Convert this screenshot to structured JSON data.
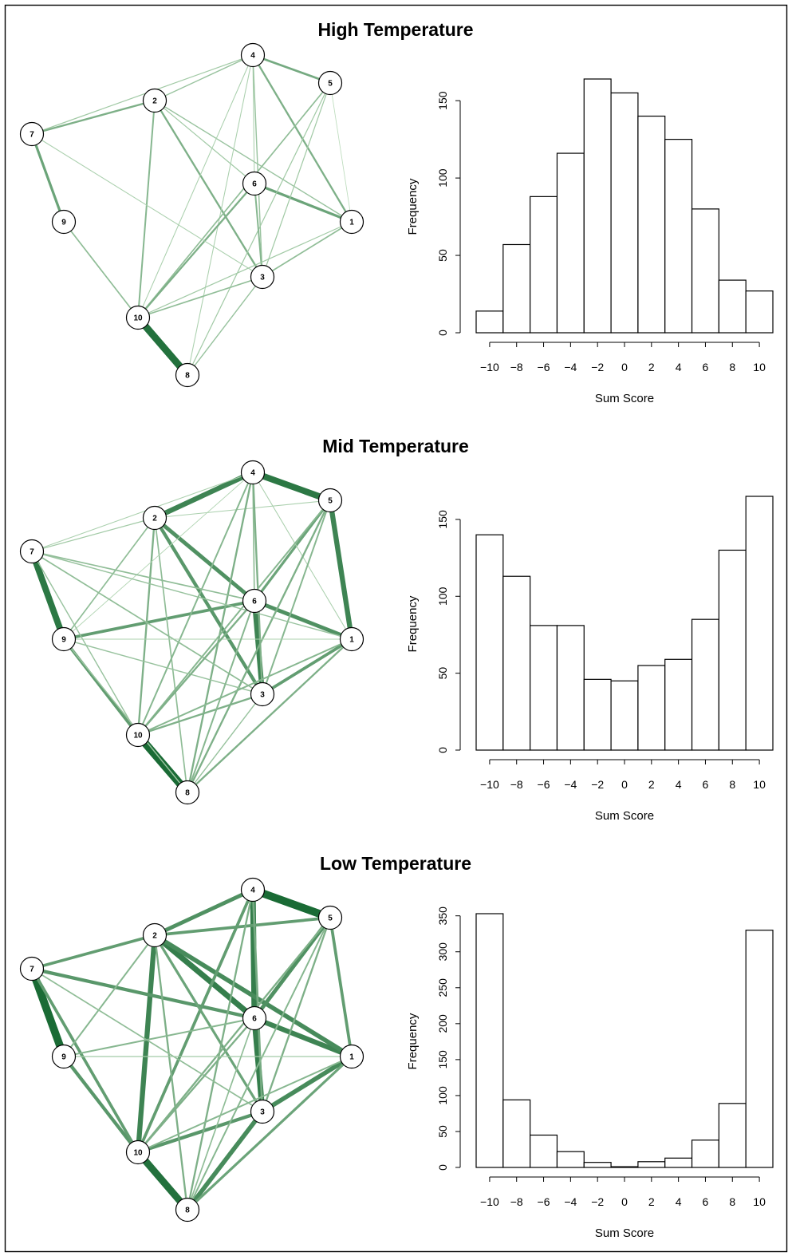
{
  "colors": {
    "edge_light": "#cfe9cc",
    "edge_dark": "#1a6b35",
    "node_fill": "#ffffff",
    "node_stroke": "#000000",
    "bar_fill": "#ffffff",
    "bar_stroke": "#000000"
  },
  "chart_data": [
    {
      "type": "network",
      "title": "High Temperature",
      "nodes": [
        "1",
        "2",
        "3",
        "4",
        "5",
        "6",
        "7",
        "8",
        "9",
        "10"
      ],
      "edges": [
        {
          "from": "4",
          "to": "5",
          "weight": 0.5
        },
        {
          "from": "4",
          "to": "2",
          "weight": 0.3
        },
        {
          "from": "4",
          "to": "7",
          "weight": 0.25
        },
        {
          "from": "2",
          "to": "7",
          "weight": 0.45
        },
        {
          "from": "7",
          "to": "9",
          "weight": 0.55
        },
        {
          "from": "9",
          "to": "10",
          "weight": 0.35
        },
        {
          "from": "10",
          "to": "8",
          "weight": 0.95
        },
        {
          "from": "2",
          "to": "10",
          "weight": 0.4
        },
        {
          "from": "2",
          "to": "3",
          "weight": 0.45
        },
        {
          "from": "2",
          "to": "1",
          "weight": 0.3
        },
        {
          "from": "2",
          "to": "6",
          "weight": 0.25
        },
        {
          "from": "6",
          "to": "1",
          "weight": 0.55
        },
        {
          "from": "4",
          "to": "6",
          "weight": 0.2
        },
        {
          "from": "4",
          "to": "1",
          "weight": 0.45
        },
        {
          "from": "4",
          "to": "3",
          "weight": 0.3
        },
        {
          "from": "4",
          "to": "10",
          "weight": 0.2
        },
        {
          "from": "4",
          "to": "8",
          "weight": 0.2
        },
        {
          "from": "5",
          "to": "10",
          "weight": 0.35
        },
        {
          "from": "5",
          "to": "3",
          "weight": 0.25
        },
        {
          "from": "5",
          "to": "8",
          "weight": 0.25
        },
        {
          "from": "5",
          "to": "1",
          "weight": 0.1
        },
        {
          "from": "6",
          "to": "10",
          "weight": 0.45
        },
        {
          "from": "6",
          "to": "3",
          "weight": 0.4
        },
        {
          "from": "7",
          "to": "3",
          "weight": 0.2
        },
        {
          "from": "3",
          "to": "10",
          "weight": 0.35
        },
        {
          "from": "1",
          "to": "3",
          "weight": 0.35
        },
        {
          "from": "1",
          "to": "10",
          "weight": 0.25
        },
        {
          "from": "3",
          "to": "8",
          "weight": 0.3
        }
      ],
      "histogram": {
        "type": "bar",
        "xlabel": "Sum Score",
        "ylabel": "Frequency",
        "bins": [
          [
            -11,
            -9
          ],
          [
            -9,
            -7
          ],
          [
            -7,
            -5
          ],
          [
            -5,
            -3
          ],
          [
            -3,
            -1
          ],
          [
            -1,
            1
          ],
          [
            1,
            3
          ],
          [
            3,
            5
          ],
          [
            5,
            7
          ],
          [
            7,
            9
          ],
          [
            9,
            11
          ]
        ],
        "values": [
          14,
          57,
          88,
          116,
          164,
          155,
          140,
          125,
          80,
          34,
          27
        ],
        "xticks": [
          -10,
          -8,
          -6,
          -4,
          -2,
          0,
          2,
          4,
          6,
          8,
          10
        ],
        "yticks": [
          0,
          50,
          100,
          150
        ],
        "xlim": [
          -11,
          11
        ],
        "ylim": [
          0,
          164
        ]
      }
    },
    {
      "type": "network",
      "title": "Mid Temperature",
      "nodes": [
        "1",
        "2",
        "3",
        "4",
        "5",
        "6",
        "7",
        "8",
        "9",
        "10"
      ],
      "edges": [
        {
          "from": "4",
          "to": "5",
          "weight": 0.9
        },
        {
          "from": "2",
          "to": "4",
          "weight": 0.8
        },
        {
          "from": "5",
          "to": "1",
          "weight": 0.8
        },
        {
          "from": "7",
          "to": "9",
          "weight": 0.9
        },
        {
          "from": "10",
          "to": "8",
          "weight": 1.0
        },
        {
          "from": "6",
          "to": "3",
          "weight": 0.8
        },
        {
          "from": "2",
          "to": "6",
          "weight": 0.7
        },
        {
          "from": "6",
          "to": "1",
          "weight": 0.7
        },
        {
          "from": "2",
          "to": "3",
          "weight": 0.65
        },
        {
          "from": "9",
          "to": "6",
          "weight": 0.6
        },
        {
          "from": "9",
          "to": "10",
          "weight": 0.6
        },
        {
          "from": "3",
          "to": "1",
          "weight": 0.6
        },
        {
          "from": "5",
          "to": "6",
          "weight": 0.55
        },
        {
          "from": "2",
          "to": "10",
          "weight": 0.45
        },
        {
          "from": "2",
          "to": "8",
          "weight": 0.35
        },
        {
          "from": "2",
          "to": "5",
          "weight": 0.2
        },
        {
          "from": "2",
          "to": "7",
          "weight": 0.25
        },
        {
          "from": "2",
          "to": "9",
          "weight": 0.35
        },
        {
          "from": "4",
          "to": "7",
          "weight": 0.2
        },
        {
          "from": "4",
          "to": "6",
          "weight": 0.35
        },
        {
          "from": "4",
          "to": "3",
          "weight": 0.45
        },
        {
          "from": "4",
          "to": "10",
          "weight": 0.4
        },
        {
          "from": "4",
          "to": "8",
          "weight": 0.45
        },
        {
          "from": "4",
          "to": "1",
          "weight": 0.2
        },
        {
          "from": "4",
          "to": "9",
          "weight": 0.15
        },
        {
          "from": "5",
          "to": "10",
          "weight": 0.4
        },
        {
          "from": "5",
          "to": "3",
          "weight": 0.4
        },
        {
          "from": "5",
          "to": "8",
          "weight": 0.45
        },
        {
          "from": "7",
          "to": "6",
          "weight": 0.35
        },
        {
          "from": "7",
          "to": "1",
          "weight": 0.3
        },
        {
          "from": "7",
          "to": "3",
          "weight": 0.35
        },
        {
          "from": "7",
          "to": "10",
          "weight": 0.3
        },
        {
          "from": "9",
          "to": "1",
          "weight": 0.2
        },
        {
          "from": "9",
          "to": "3",
          "weight": 0.3
        },
        {
          "from": "10",
          "to": "1",
          "weight": 0.4
        },
        {
          "from": "10",
          "to": "3",
          "weight": 0.45
        },
        {
          "from": "10",
          "to": "6",
          "weight": 0.45
        },
        {
          "from": "8",
          "to": "1",
          "weight": 0.45
        },
        {
          "from": "8",
          "to": "3",
          "weight": 0.3
        },
        {
          "from": "8",
          "to": "6",
          "weight": 0.4
        },
        {
          "from": "9",
          "to": "8",
          "weight": 0.3
        }
      ],
      "histogram": {
        "type": "bar",
        "xlabel": "Sum Score",
        "ylabel": "Frequency",
        "bins": [
          [
            -11,
            -9
          ],
          [
            -9,
            -7
          ],
          [
            -7,
            -5
          ],
          [
            -5,
            -3
          ],
          [
            -3,
            -1
          ],
          [
            -1,
            1
          ],
          [
            1,
            3
          ],
          [
            3,
            5
          ],
          [
            5,
            7
          ],
          [
            7,
            9
          ],
          [
            9,
            11
          ]
        ],
        "values": [
          140,
          113,
          81,
          81,
          46,
          45,
          55,
          59,
          85,
          130,
          165
        ],
        "xticks": [
          -10,
          -8,
          -6,
          -4,
          -2,
          0,
          2,
          4,
          6,
          8,
          10
        ],
        "yticks": [
          0,
          50,
          100,
          150
        ],
        "xlim": [
          -11,
          11
        ],
        "ylim": [
          0,
          165
        ]
      }
    },
    {
      "type": "network",
      "title": "Low Temperature",
      "nodes": [
        "1",
        "2",
        "3",
        "4",
        "5",
        "6",
        "7",
        "8",
        "9",
        "10"
      ],
      "edges": [
        {
          "from": "4",
          "to": "5",
          "weight": 1.0
        },
        {
          "from": "7",
          "to": "9",
          "weight": 1.0
        },
        {
          "from": "10",
          "to": "8",
          "weight": 0.95
        },
        {
          "from": "4",
          "to": "6",
          "weight": 0.85
        },
        {
          "from": "6",
          "to": "3",
          "weight": 0.85
        },
        {
          "from": "2",
          "to": "6",
          "weight": 0.85
        },
        {
          "from": "6",
          "to": "1",
          "weight": 0.8
        },
        {
          "from": "2",
          "to": "1",
          "weight": 0.75
        },
        {
          "from": "2",
          "to": "10",
          "weight": 0.8
        },
        {
          "from": "3",
          "to": "8",
          "weight": 0.75
        },
        {
          "from": "3",
          "to": "1",
          "weight": 0.75
        },
        {
          "from": "2",
          "to": "4",
          "weight": 0.7
        },
        {
          "from": "5",
          "to": "6",
          "weight": 0.7
        },
        {
          "from": "7",
          "to": "6",
          "weight": 0.65
        },
        {
          "from": "10",
          "to": "3",
          "weight": 0.65
        },
        {
          "from": "9",
          "to": "10",
          "weight": 0.65
        },
        {
          "from": "7",
          "to": "10",
          "weight": 0.6
        },
        {
          "from": "2",
          "to": "7",
          "weight": 0.6
        },
        {
          "from": "4",
          "to": "10",
          "weight": 0.6
        },
        {
          "from": "2",
          "to": "5",
          "weight": 0.6
        },
        {
          "from": "5",
          "to": "1",
          "weight": 0.6
        },
        {
          "from": "1",
          "to": "8",
          "weight": 0.55
        },
        {
          "from": "2",
          "to": "3",
          "weight": 0.55
        },
        {
          "from": "2",
          "to": "8",
          "weight": 0.45
        },
        {
          "from": "2",
          "to": "9",
          "weight": 0.4
        },
        {
          "from": "4",
          "to": "8",
          "weight": 0.45
        },
        {
          "from": "4",
          "to": "3",
          "weight": 0.5
        },
        {
          "from": "5",
          "to": "10",
          "weight": 0.45
        },
        {
          "from": "5",
          "to": "3",
          "weight": 0.45
        },
        {
          "from": "5",
          "to": "8",
          "weight": 0.4
        },
        {
          "from": "7",
          "to": "3",
          "weight": 0.35
        },
        {
          "from": "9",
          "to": "6",
          "weight": 0.4
        },
        {
          "from": "10",
          "to": "6",
          "weight": 0.45
        },
        {
          "from": "10",
          "to": "1",
          "weight": 0.4
        },
        {
          "from": "9",
          "to": "1",
          "weight": 0.25
        },
        {
          "from": "8",
          "to": "6",
          "weight": 0.35
        }
      ],
      "histogram": {
        "type": "bar",
        "xlabel": "Sum Score",
        "ylabel": "Frequency",
        "bins": [
          [
            -11,
            -9
          ],
          [
            -9,
            -7
          ],
          [
            -7,
            -5
          ],
          [
            -5,
            -3
          ],
          [
            -3,
            -1
          ],
          [
            -1,
            1
          ],
          [
            1,
            3
          ],
          [
            3,
            5
          ],
          [
            5,
            7
          ],
          [
            7,
            9
          ],
          [
            9,
            11
          ]
        ],
        "values": [
          353,
          94,
          45,
          22,
          7,
          1,
          8,
          13,
          38,
          89,
          330
        ],
        "xticks": [
          -10,
          -8,
          -6,
          -4,
          -2,
          0,
          2,
          4,
          6,
          8,
          10
        ],
        "yticks": [
          0,
          50,
          100,
          150,
          200,
          250,
          300,
          350
        ],
        "xlim": [
          -11,
          11
        ],
        "ylim": [
          0,
          353
        ]
      }
    }
  ]
}
